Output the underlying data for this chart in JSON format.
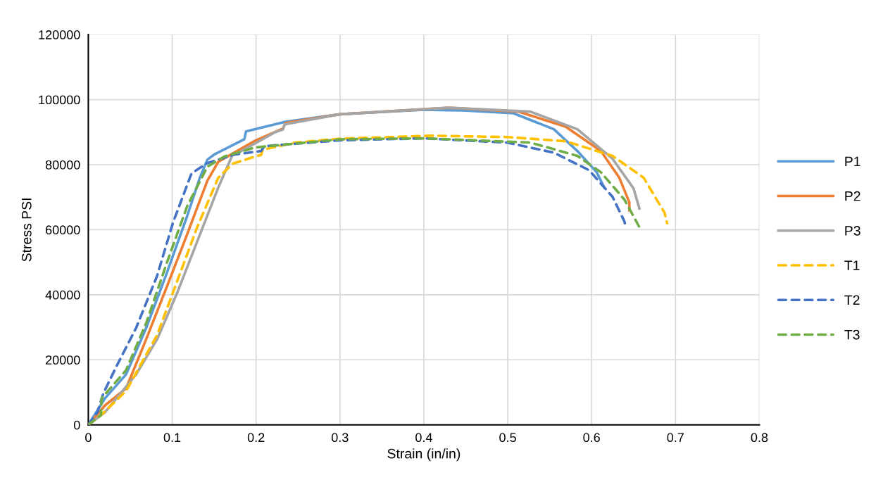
{
  "chart_data": {
    "type": "line",
    "xlabel": "Strain (in/in)",
    "ylabel": "Stress PSI",
    "xlim": [
      0,
      0.8
    ],
    "xticks": [
      0,
      0.1,
      0.2,
      0.3,
      0.4,
      0.5,
      0.6,
      0.7,
      0.8
    ],
    "ylim": [
      0,
      120000
    ],
    "yticks": [
      0,
      20000,
      40000,
      60000,
      80000,
      100000,
      120000
    ],
    "grid": true,
    "legend": "right",
    "marker": "none",
    "series": [
      {
        "name": "P1",
        "color": "#5b9bd5",
        "line_style": "solid",
        "x": [
          0,
          0.02,
          0.045,
          0.069,
          0.094,
          0.118,
          0.133,
          0.142,
          0.15,
          0.186,
          0.188,
          0.235,
          0.3,
          0.4,
          0.443,
          0.507,
          0.555,
          0.583,
          0.606,
          0.615
        ],
        "values": [
          0,
          8200,
          15500,
          29800,
          47000,
          64300,
          76000,
          81600,
          83100,
          87800,
          90200,
          93200,
          95500,
          96900,
          96700,
          95800,
          90900,
          84200,
          77700,
          73000
        ]
      },
      {
        "name": "P2",
        "color": "#ed7d31",
        "line_style": "solid",
        "x": [
          0,
          0.02,
          0.045,
          0.069,
          0.094,
          0.118,
          0.142,
          0.155,
          0.174,
          0.199,
          0.232,
          0.235,
          0.3,
          0.43,
          0.513,
          0.569,
          0.611,
          0.633,
          0.645,
          0.645
        ],
        "values": [
          0,
          6000,
          11200,
          26300,
          42700,
          58700,
          75100,
          80900,
          83700,
          87400,
          91100,
          92800,
          95500,
          97500,
          96300,
          91700,
          84200,
          76000,
          68400,
          66000
        ]
      },
      {
        "name": "P3",
        "color": "#a5a5a5",
        "line_style": "solid",
        "x": [
          0,
          0.02,
          0.057,
          0.082,
          0.106,
          0.13,
          0.155,
          0.172,
          0.179,
          0.223,
          0.232,
          0.234,
          0.3,
          0.429,
          0.527,
          0.583,
          0.625,
          0.65,
          0.657
        ],
        "values": [
          0,
          3900,
          15500,
          26300,
          40600,
          56500,
          73000,
          83100,
          83700,
          90000,
          90800,
          92400,
          95500,
          97500,
          96300,
          90900,
          81800,
          72700,
          66500
        ]
      },
      {
        "name": "T1",
        "color": "#ffc000",
        "line_style": "dashed",
        "x": [
          0,
          0.016,
          0.045,
          0.082,
          0.106,
          0.13,
          0.155,
          0.172,
          0.199,
          0.206,
          0.208,
          0.247,
          0.3,
          0.409,
          0.499,
          0.569,
          0.625,
          0.662,
          0.687,
          0.69
        ],
        "values": [
          0,
          3200,
          10400,
          27600,
          44200,
          60900,
          76000,
          80300,
          82500,
          83000,
          84600,
          86800,
          88000,
          88900,
          88500,
          87200,
          82700,
          76000,
          65200,
          62000
        ]
      },
      {
        "name": "T2",
        "color": "#4472c4",
        "line_style": "dashed",
        "x": [
          0,
          0.011,
          0.018,
          0.033,
          0.057,
          0.082,
          0.101,
          0.123,
          0.142,
          0.174,
          0.206,
          0.21,
          0.3,
          0.4,
          0.499,
          0.555,
          0.597,
          0.625,
          0.639,
          0.641
        ],
        "values": [
          0,
          3900,
          9700,
          17700,
          29800,
          45800,
          62200,
          77300,
          80500,
          83100,
          84200,
          85700,
          87500,
          88100,
          86800,
          83700,
          78300,
          70100,
          62600,
          60700
        ]
      },
      {
        "name": "T3",
        "color": "#70ad47",
        "line_style": "dashed",
        "x": [
          0,
          0.015,
          0.016,
          0.045,
          0.069,
          0.094,
          0.118,
          0.142,
          0.162,
          0.199,
          0.3,
          0.4,
          0.527,
          0.583,
          0.611,
          0.639,
          0.659
        ],
        "values": [
          0,
          3000,
          8200,
          16800,
          31300,
          50100,
          67300,
          79400,
          82500,
          85300,
          87800,
          88100,
          86800,
          82700,
          77700,
          69300,
          59800
        ]
      }
    ]
  }
}
